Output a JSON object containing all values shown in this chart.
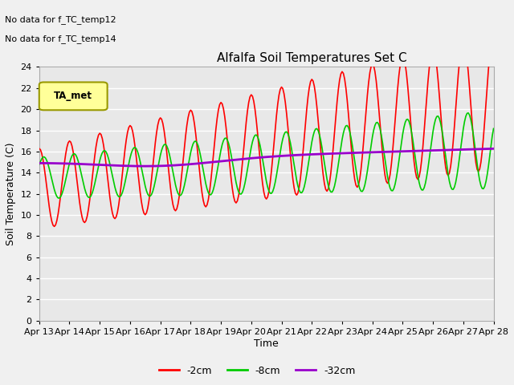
{
  "title": "Alfalfa Soil Temperatures Set C",
  "xlabel": "Time",
  "ylabel": "Soil Temperature (C)",
  "ylim": [
    0,
    24
  ],
  "yticks": [
    0,
    2,
    4,
    6,
    8,
    10,
    12,
    14,
    16,
    18,
    20,
    22,
    24
  ],
  "xtick_labels": [
    "Apr 13",
    "Apr 14",
    "Apr 15",
    "Apr 16",
    "Apr 17",
    "Apr 18",
    "Apr 19",
    "Apr 20",
    "Apr 21",
    "Apr 22",
    "Apr 23",
    "Apr 24",
    "Apr 25",
    "Apr 26",
    "Apr 27",
    "Apr 28"
  ],
  "no_data_text": [
    "No data for f_TC_temp12",
    "No data for f_TC_temp14"
  ],
  "legend_box_label": "TA_met",
  "legend_box_color": "#ffff99",
  "legend_box_border": "#999900",
  "bg_color": "#e8e8e8",
  "grid_color": "#ffffff",
  "line_2cm_color": "#ff0000",
  "line_8cm_color": "#00cc00",
  "line_32cm_color": "#9900cc",
  "line_2cm_label": "-2cm",
  "line_8cm_label": "-8cm",
  "line_32cm_label": "-32cm",
  "fig_width": 6.4,
  "fig_height": 4.8,
  "dpi": 100
}
